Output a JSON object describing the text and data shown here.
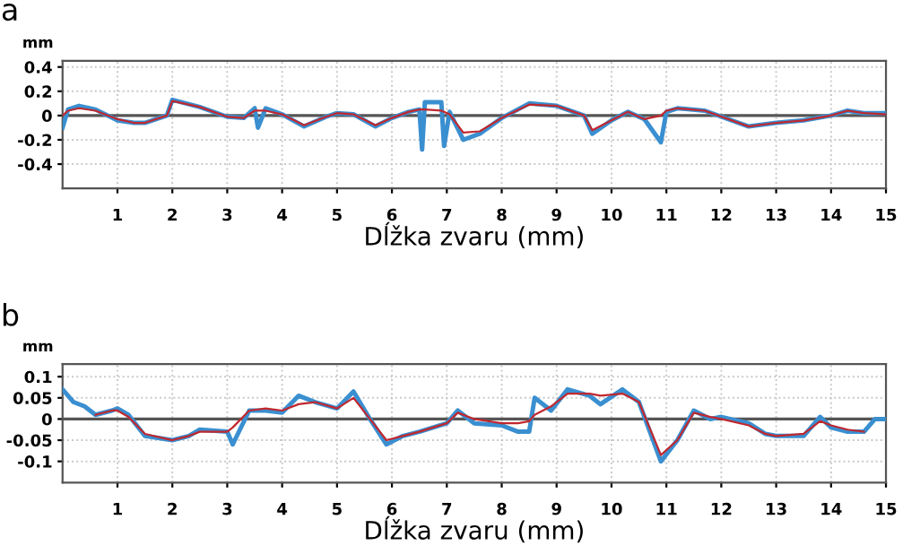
{
  "chart_data": [
    {
      "type": "line",
      "title": "a",
      "ylabel": "mm",
      "xlabel": "Dĺžka zvaru (mm)",
      "x": [
        0,
        0.1,
        0.3,
        0.6,
        1.0,
        1.3,
        1.5,
        1.9,
        2.0,
        2.5,
        3.0,
        3.3,
        3.5,
        3.56,
        3.7,
        4.0,
        4.4,
        4.8,
        5.0,
        5.3,
        5.7,
        6.0,
        6.3,
        6.5,
        6.55,
        6.6,
        6.9,
        6.95,
        7.05,
        7.3,
        7.6,
        8.0,
        8.5,
        9.0,
        9.5,
        9.65,
        10.0,
        10.3,
        10.6,
        10.9,
        11.0,
        11.2,
        11.7,
        12.5,
        13.0,
        13.5,
        14.0,
        14.3,
        14.6,
        15.0
      ],
      "series": [
        {
          "color": "#3a8fd0",
          "values": [
            -0.1,
            0.05,
            0.08,
            0.05,
            -0.04,
            -0.06,
            -0.06,
            0.0,
            0.13,
            0.07,
            -0.01,
            -0.02,
            0.06,
            -0.1,
            0.06,
            0.01,
            -0.09,
            -0.01,
            0.02,
            0.01,
            -0.09,
            -0.02,
            0.03,
            0.05,
            -0.28,
            0.11,
            0.11,
            -0.25,
            0.03,
            -0.2,
            -0.15,
            -0.02,
            0.1,
            0.08,
            0.0,
            -0.15,
            -0.04,
            0.03,
            -0.03,
            -0.22,
            0.03,
            0.06,
            0.04,
            -0.09,
            -0.06,
            -0.04,
            0.0,
            0.04,
            0.02,
            0.02
          ]
        },
        {
          "color": "#c0282f",
          "values": [
            0.0,
            0.04,
            0.06,
            0.04,
            -0.03,
            -0.06,
            -0.06,
            0.0,
            0.12,
            0.07,
            -0.01,
            -0.02,
            0.04,
            0.04,
            0.04,
            0.01,
            -0.08,
            -0.01,
            0.02,
            0.01,
            -0.08,
            -0.02,
            0.03,
            0.05,
            0.05,
            0.05,
            0.04,
            0.03,
            0.01,
            -0.14,
            -0.13,
            -0.02,
            0.09,
            0.08,
            0.0,
            -0.12,
            -0.04,
            0.03,
            -0.03,
            0.0,
            0.04,
            0.06,
            0.04,
            -0.09,
            -0.06,
            -0.04,
            0.0,
            0.04,
            0.02,
            0.01
          ]
        }
      ],
      "xlim": [
        0,
        15
      ],
      "ylim": [
        -0.6,
        0.45
      ],
      "xticks": [
        1,
        2,
        3,
        4,
        5,
        6,
        7,
        8,
        9,
        10,
        11,
        12,
        13,
        14,
        15
      ],
      "yticks": [
        0.4,
        0.2,
        0,
        -0.2,
        -0.4
      ],
      "ref_lines": [
        {
          "axis": "y",
          "value": 0,
          "color": "#555555"
        }
      ],
      "grid": true,
      "line_style": "solid"
    },
    {
      "type": "line",
      "title": "b",
      "ylabel": "mm",
      "xlabel": "Dĺžka zvaru (mm)",
      "x": [
        0,
        0.2,
        0.4,
        0.6,
        0.9,
        1.0,
        1.2,
        1.5,
        2.0,
        2.3,
        2.5,
        3.0,
        3.1,
        3.4,
        3.7,
        4.0,
        4.3,
        4.6,
        5.0,
        5.3,
        5.6,
        5.9,
        6.2,
        6.5,
        7.0,
        7.2,
        7.5,
        8.0,
        8.3,
        8.5,
        8.6,
        8.9,
        9.2,
        9.6,
        9.8,
        10.2,
        10.5,
        10.9,
        11.2,
        11.5,
        11.8,
        12.0,
        12.5,
        12.8,
        13.0,
        13.5,
        13.8,
        14.0,
        14.3,
        14.6,
        14.8,
        15.0
      ],
      "series": [
        {
          "color": "#3a8fd0",
          "values": [
            0.07,
            0.04,
            0.03,
            0.01,
            0.02,
            0.025,
            0.01,
            -0.04,
            -0.05,
            -0.04,
            -0.025,
            -0.03,
            -0.06,
            0.02,
            0.02,
            0.015,
            0.055,
            0.04,
            0.025,
            0.065,
            0.0,
            -0.06,
            -0.04,
            -0.03,
            -0.01,
            0.02,
            -0.01,
            -0.015,
            -0.03,
            -0.03,
            0.05,
            0.02,
            0.07,
            0.055,
            0.035,
            0.07,
            0.04,
            -0.1,
            -0.05,
            0.02,
            0.0,
            0.005,
            -0.01,
            -0.035,
            -0.04,
            -0.04,
            0.005,
            -0.02,
            -0.03,
            -0.03,
            0.0,
            0.0
          ]
        },
        {
          "color": "#c0282f",
          "values": [
            null,
            null,
            null,
            0.01,
            0.02,
            0.02,
            0.005,
            -0.035,
            -0.05,
            -0.04,
            -0.03,
            -0.03,
            -0.02,
            0.02,
            0.025,
            0.02,
            0.035,
            0.04,
            0.025,
            0.05,
            0.0,
            -0.05,
            -0.04,
            -0.03,
            -0.01,
            0.015,
            0.0,
            -0.01,
            -0.01,
            -0.005,
            0.01,
            0.03,
            0.06,
            0.06,
            0.055,
            0.06,
            0.04,
            -0.085,
            -0.05,
            0.015,
            0.005,
            0.0,
            -0.015,
            -0.035,
            -0.04,
            -0.035,
            -0.005,
            -0.015,
            -0.025,
            -0.03,
            null,
            null
          ]
        }
      ],
      "xlim": [
        0,
        15
      ],
      "ylim": [
        -0.15,
        0.13
      ],
      "xticks": [
        1,
        2,
        3,
        4,
        5,
        6,
        7,
        8,
        9,
        10,
        11,
        12,
        13,
        14,
        15
      ],
      "yticks": [
        0.1,
        0.05,
        0,
        -0.05,
        -0.1
      ],
      "ref_lines": [
        {
          "axis": "y",
          "value": 0,
          "color": "#555555"
        }
      ],
      "grid": true,
      "line_style": "solid"
    }
  ]
}
